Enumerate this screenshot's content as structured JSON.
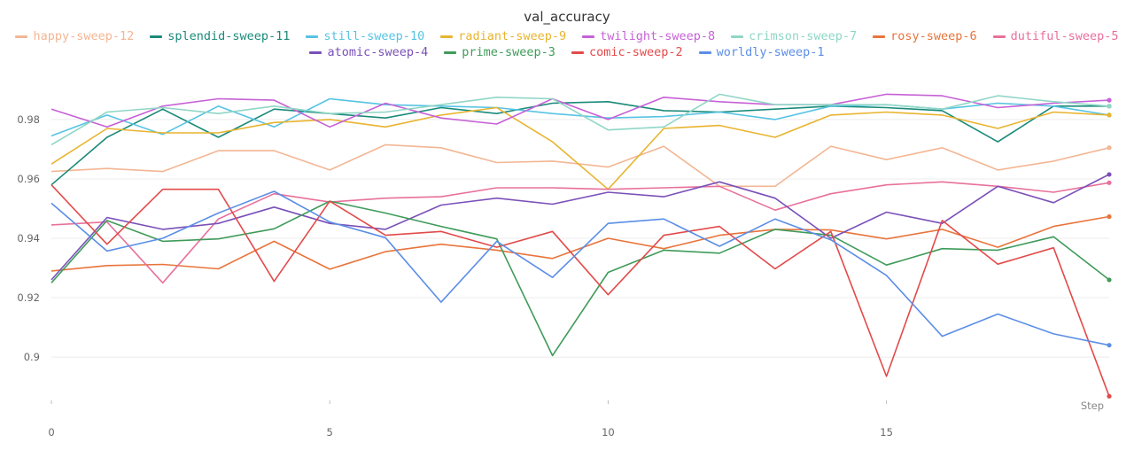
{
  "chart_data": {
    "type": "line",
    "title": "val_accuracy",
    "xlabel": "Step",
    "ylabel": "",
    "xlim": [
      0,
      19
    ],
    "ylim": [
      0.886,
      0.994
    ],
    "xticks": [
      0,
      5,
      10,
      15
    ],
    "xtick_labels": [
      "0",
      "5",
      "10",
      "15"
    ],
    "yticks": [
      0.9,
      0.92,
      0.94,
      0.96,
      0.98
    ],
    "ytick_labels": [
      "0.9",
      "0.92",
      "0.94",
      "0.96",
      "0.98"
    ],
    "grid": true,
    "legend_position": "top-center",
    "x": [
      0,
      1,
      2,
      3,
      4,
      5,
      6,
      7,
      8,
      9,
      10,
      11,
      12,
      13,
      14,
      15,
      16,
      17,
      18,
      19
    ],
    "series": [
      {
        "name": "happy-sweep-12",
        "color": "#f3b694",
        "values": [
          0.9625,
          0.9635,
          0.9625,
          0.9695,
          0.9695,
          0.963,
          0.9715,
          0.9705,
          0.9655,
          0.966,
          0.964,
          0.971,
          0.9575,
          0.9575,
          0.971,
          0.9665,
          0.9705,
          0.963,
          0.966,
          0.9705
        ]
      },
      {
        "name": "splendid-sweep-11",
        "color": "#1a8a7a",
        "values": [
          0.958,
          0.974,
          0.9835,
          0.974,
          0.9835,
          0.982,
          0.9805,
          0.984,
          0.982,
          0.9855,
          0.986,
          0.983,
          0.9825,
          0.9835,
          0.9845,
          0.984,
          0.983,
          0.9725,
          0.9845,
          0.9845
        ]
      },
      {
        "name": "still-sweep-10",
        "color": "#56c3e3",
        "values": [
          0.9745,
          0.9815,
          0.975,
          0.9845,
          0.9775,
          0.987,
          0.985,
          0.9845,
          0.984,
          0.982,
          0.9805,
          0.981,
          0.9825,
          0.98,
          0.9845,
          0.985,
          0.9835,
          0.9855,
          0.9845,
          0.9815
        ]
      },
      {
        "name": "radiant-sweep-9",
        "color": "#e8b42f",
        "values": [
          0.965,
          0.977,
          0.9755,
          0.9755,
          0.979,
          0.98,
          0.9775,
          0.9815,
          0.984,
          0.9725,
          0.9565,
          0.977,
          0.978,
          0.974,
          0.9815,
          0.9825,
          0.9815,
          0.977,
          0.9825,
          0.9815
        ]
      },
      {
        "name": "twilight-sweep-8",
        "color": "#c661d6",
        "values": [
          0.9835,
          0.9775,
          0.9845,
          0.987,
          0.9865,
          0.9775,
          0.9855,
          0.9805,
          0.9785,
          0.987,
          0.98,
          0.9875,
          0.986,
          0.985,
          0.985,
          0.9885,
          0.988,
          0.984,
          0.9855,
          0.9865
        ]
      },
      {
        "name": "crimson-sweep-7",
        "color": "#8fd6c6",
        "values": [
          0.9715,
          0.9825,
          0.984,
          0.982,
          0.9845,
          0.982,
          0.9825,
          0.985,
          0.9875,
          0.987,
          0.9765,
          0.9775,
          0.9885,
          0.985,
          0.985,
          0.985,
          0.9835,
          0.988,
          0.986,
          0.9845
        ]
      },
      {
        "name": "rosy-sweep-6",
        "color": "#e8743b",
        "values": [
          0.929,
          0.9308,
          0.9312,
          0.9297,
          0.939,
          0.9296,
          0.9355,
          0.938,
          0.936,
          0.9332,
          0.94,
          0.9365,
          0.941,
          0.943,
          0.9428,
          0.9398,
          0.943,
          0.937,
          0.944,
          0.9473
        ]
      },
      {
        "name": "dutiful-sweep-5",
        "color": "#e8709b",
        "values": [
          0.9445,
          0.9455,
          0.925,
          0.9465,
          0.955,
          0.9522,
          0.9535,
          0.954,
          0.957,
          0.957,
          0.9565,
          0.957,
          0.9575,
          0.9495,
          0.955,
          0.958,
          0.959,
          0.9575,
          0.9555,
          0.9587
        ]
      },
      {
        "name": "atomic-sweep-4",
        "color": "#7a50b8",
        "values": [
          0.926,
          0.947,
          0.943,
          0.945,
          0.9505,
          0.945,
          0.943,
          0.9512,
          0.9535,
          0.9515,
          0.9555,
          0.954,
          0.959,
          0.9535,
          0.94,
          0.9488,
          0.945,
          0.9575,
          0.952,
          0.9615
        ]
      },
      {
        "name": "prime-sweep-3",
        "color": "#3f9b5a",
        "values": [
          0.925,
          0.946,
          0.939,
          0.9398,
          0.9432,
          0.9525,
          0.9485,
          0.944,
          0.9398,
          0.9005,
          0.9285,
          0.936,
          0.935,
          0.943,
          0.941,
          0.931,
          0.9365,
          0.936,
          0.9405,
          0.926
        ]
      },
      {
        "name": "comic-sweep-2",
        "color": "#e34a4a",
        "values": [
          0.958,
          0.938,
          0.9565,
          0.9565,
          0.9255,
          0.9525,
          0.941,
          0.9423,
          0.937,
          0.9423,
          0.921,
          0.941,
          0.944,
          0.9297,
          0.9423,
          0.8935,
          0.946,
          0.9313,
          0.9368,
          0.8868
        ]
      },
      {
        "name": "worldly-sweep-1",
        "color": "#5b8ee6",
        "values": [
          0.9518,
          0.9357,
          0.94,
          0.9485,
          0.9558,
          0.9455,
          0.9402,
          0.9185,
          0.939,
          0.9268,
          0.945,
          0.9465,
          0.9373,
          0.9465,
          0.9395,
          0.9275,
          0.907,
          0.9145,
          0.9078,
          0.904
        ]
      }
    ]
  }
}
